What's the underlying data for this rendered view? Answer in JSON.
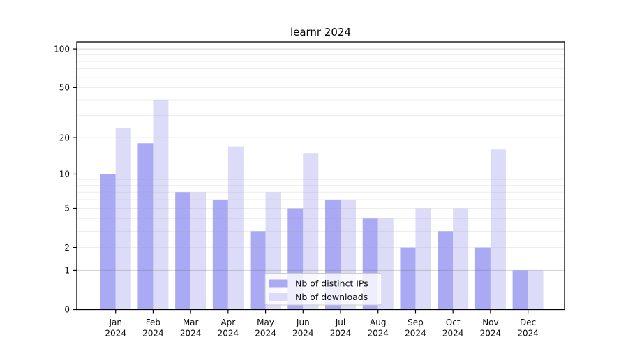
{
  "title": "learnr 2024",
  "chart_data": {
    "type": "bar",
    "title": "learnr 2024",
    "categories": [
      "Jan",
      "Feb",
      "Mar",
      "Apr",
      "May",
      "Jun",
      "Jul",
      "Aug",
      "Sep",
      "Oct",
      "Nov",
      "Dec"
    ],
    "x_tick_label_line2": "2024",
    "series": [
      {
        "name": "Nb of distinct IPs",
        "color": "#a9a9f4",
        "values": [
          10,
          18,
          7,
          6,
          3,
          5,
          6,
          4,
          2,
          3,
          2,
          1
        ]
      },
      {
        "name": "Nb of downloads",
        "color": "#dcdcf8",
        "values": [
          24,
          40,
          7,
          17,
          7,
          15,
          6,
          4,
          5,
          5,
          16,
          1
        ]
      }
    ],
    "xlabel": "",
    "ylabel": "",
    "y_scale": "log1p",
    "ylim": [
      0,
      113.4
    ],
    "y_ticks": [
      100,
      50,
      20,
      10,
      5,
      2,
      1,
      0
    ],
    "grid": {
      "on": true,
      "major_lines": [
        100,
        10,
        1
      ],
      "minor_lines": [
        2,
        3,
        4,
        5,
        6,
        7,
        8,
        9,
        20,
        30,
        40,
        50,
        60,
        70,
        80,
        90
      ]
    },
    "legend": {
      "position": "bottom-center",
      "entries": [
        "Nb of distinct IPs",
        "Nb of downloads"
      ]
    },
    "colors": {
      "spine": "#000000",
      "major_grid": "#c9c9c9",
      "minor_grid": "#ececec",
      "legend_border": "#cccccc"
    }
  }
}
